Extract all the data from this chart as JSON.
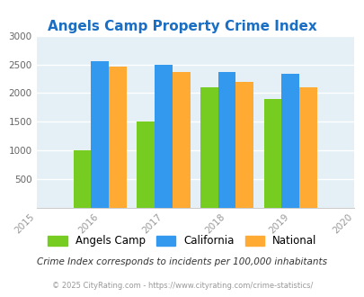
{
  "title": "Angels Camp Property Crime Index",
  "years": [
    2016,
    2017,
    2018,
    2019
  ],
  "angels_camp": [
    1000,
    1500,
    2100,
    1900
  ],
  "california": [
    2550,
    2500,
    2370,
    2330
  ],
  "national": [
    2460,
    2360,
    2190,
    2100
  ],
  "xlim": [
    2015,
    2020
  ],
  "ylim": [
    0,
    3000
  ],
  "yticks": [
    0,
    500,
    1000,
    1500,
    2000,
    2500,
    3000
  ],
  "xticks": [
    2015,
    2016,
    2017,
    2018,
    2019,
    2020
  ],
  "color_angels": "#77cc22",
  "color_california": "#3399ee",
  "color_national": "#ffaa33",
  "title_color": "#1a6fc4",
  "bg_color": "#e4f0f5",
  "legend_label_angels": "Angels Camp",
  "legend_label_california": "California",
  "legend_label_national": "National",
  "footnote1": "Crime Index corresponds to incidents per 100,000 inhabitants",
  "footnote2": "© 2025 CityRating.com - https://www.cityrating.com/crime-statistics/",
  "bar_width": 0.28
}
